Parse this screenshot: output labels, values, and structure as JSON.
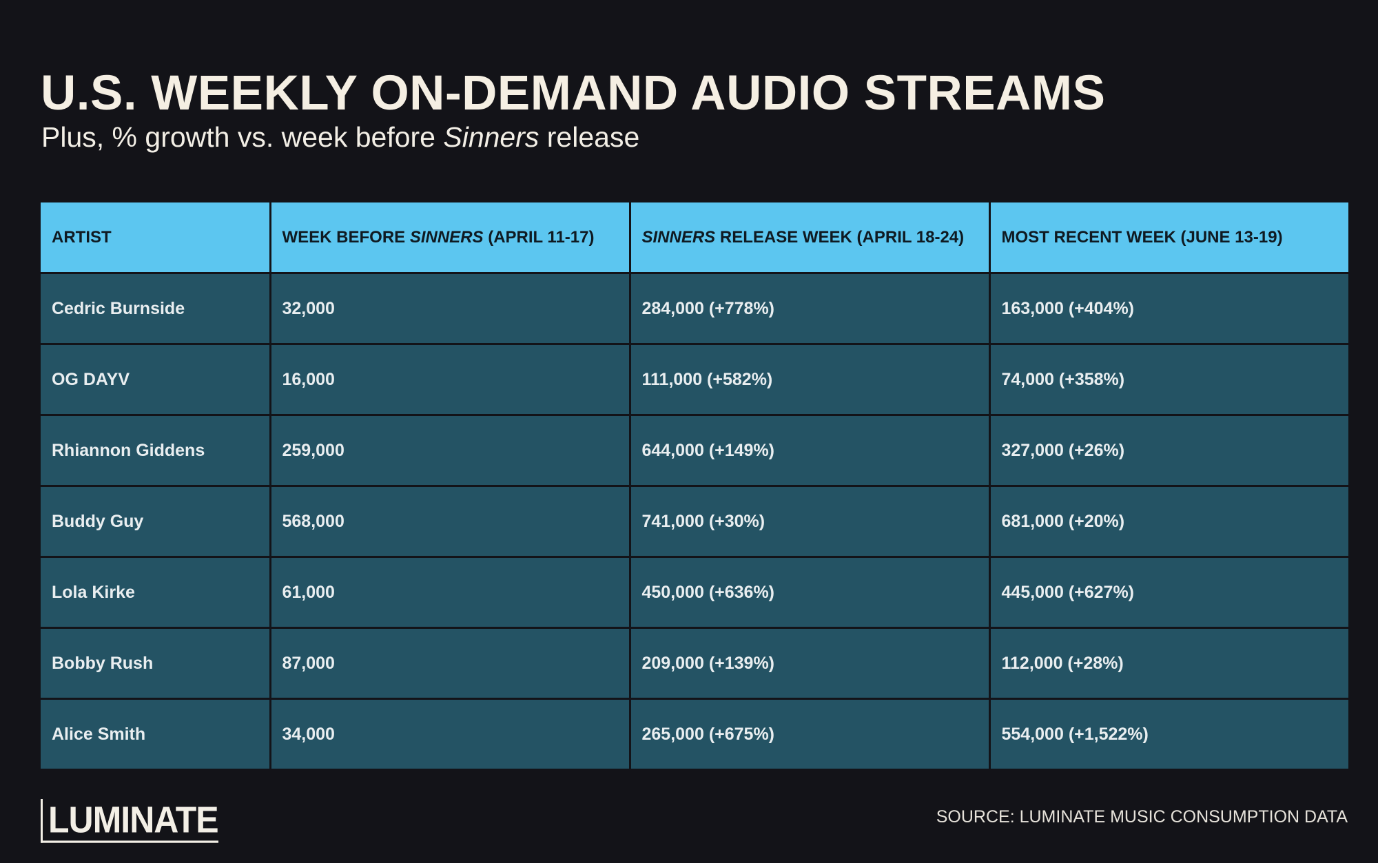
{
  "title": "U.S. WEEKLY ON-DEMAND AUDIO STREAMS",
  "subtitle": {
    "before": "Plus, % growth vs. week before ",
    "italic": "Sinners",
    "after": " release"
  },
  "chart_data": {
    "type": "table",
    "columns": [
      {
        "pre": "",
        "italic": "",
        "post": "ARTIST"
      },
      {
        "pre": "WEEK BEFORE ",
        "italic": "SINNERS",
        "post": " (APRIL 11-17)"
      },
      {
        "pre": "",
        "italic": "SINNERS",
        "post": " RELEASE WEEK (APRIL 18-24)"
      },
      {
        "pre": "",
        "italic": "",
        "post": "MOST RECENT WEEK (JUNE 13-19)"
      }
    ],
    "rows": [
      [
        "Cedric Burnside",
        "32,000",
        "284,000 (+778%)",
        "163,000 (+404%)"
      ],
      [
        "OG DAYV",
        "16,000",
        "111,000 (+582%)",
        "74,000 (+358%)"
      ],
      [
        "Rhiannon Giddens",
        "259,000",
        "644,000 (+149%)",
        "327,000 (+26%)"
      ],
      [
        "Buddy Guy",
        "568,000",
        "741,000 (+30%)",
        "681,000 (+20%)"
      ],
      [
        "Lola Kirke",
        "61,000",
        "450,000 (+636%)",
        "445,000 (+627%)"
      ],
      [
        "Bobby Rush",
        "87,000",
        "209,000 (+139%)",
        "112,000 (+28%)"
      ],
      [
        "Alice Smith",
        "34,000",
        "265,000 (+675%)",
        "554,000 (+1,522%)"
      ]
    ]
  },
  "footer": {
    "logo": "LUMINATE",
    "source": "SOURCE: LUMINATE MUSIC CONSUMPTION DATA"
  },
  "colors": {
    "background": "#131318",
    "header": "#5cc6f0",
    "row": "#245364",
    "title": "#f5efe3"
  }
}
